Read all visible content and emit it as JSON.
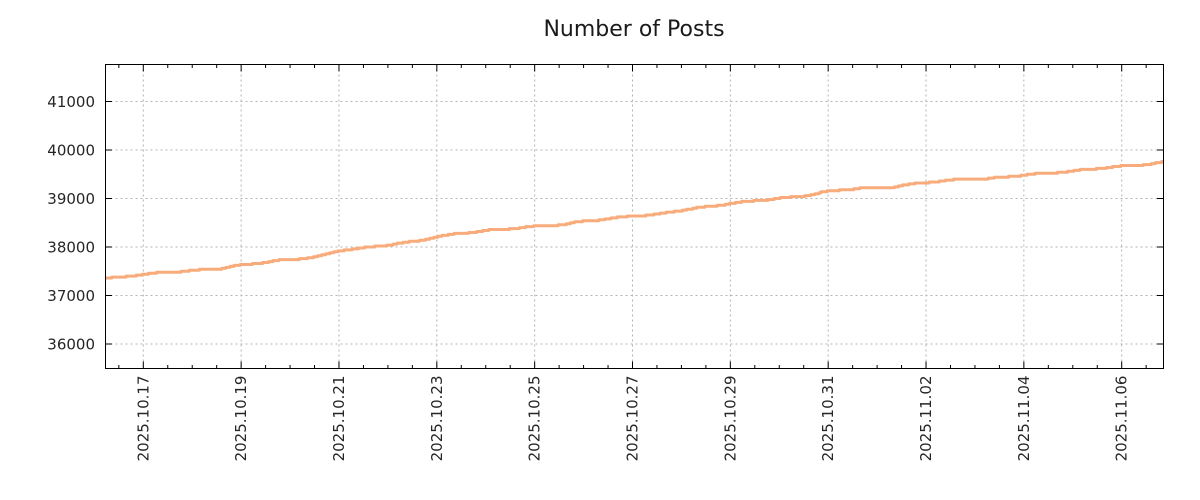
{
  "page": {
    "title": "Number of Posts"
  },
  "chart_data": {
    "type": "line",
    "title": "Number of Posts",
    "xlabel": "",
    "ylabel": "",
    "legend": "none",
    "grid": {
      "visible": true,
      "style": "dashed",
      "color": "#b3b3b3"
    },
    "x_axis": {
      "kind": "date",
      "major_tick_interval_days": 2,
      "minor_tick_interval_days": 0.5,
      "labels_rotated_degrees": 90,
      "ticks": [
        {
          "t": 0,
          "label": "2025.10.17"
        },
        {
          "t": 2,
          "label": "2025.10.19"
        },
        {
          "t": 4,
          "label": "2025.10.21"
        },
        {
          "t": 6,
          "label": "2025.10.23"
        },
        {
          "t": 8,
          "label": "2025.10.25"
        },
        {
          "t": 10,
          "label": "2025.10.27"
        },
        {
          "t": 12,
          "label": "2025.10.29"
        },
        {
          "t": 14,
          "label": "2025.10.31"
        },
        {
          "t": 16,
          "label": "2025.11.02"
        },
        {
          "t": 18,
          "label": "2025.11.04"
        },
        {
          "t": 20,
          "label": "2025.11.06"
        }
      ],
      "range_days": [
        -0.77,
        20.86
      ]
    },
    "y_axis": {
      "ticks": [
        36000,
        37000,
        38000,
        39000,
        40000,
        41000
      ],
      "range_approx": [
        35500,
        41760
      ]
    },
    "series": [
      {
        "name": "Number of Posts",
        "color": "#F8AC7C",
        "line_width": 3,
        "style": "cumulative-steps",
        "points": [
          [
            -0.77,
            37355
          ],
          [
            0,
            37440
          ],
          [
            0.5,
            37475
          ],
          [
            1,
            37510
          ],
          [
            1.5,
            37555
          ],
          [
            2,
            37630
          ],
          [
            2.5,
            37685
          ],
          [
            3,
            37740
          ],
          [
            3.5,
            37795
          ],
          [
            3.8,
            37870
          ],
          [
            4,
            37940
          ],
          [
            4.4,
            37965
          ],
          [
            5,
            38040
          ],
          [
            5.5,
            38110
          ],
          [
            6,
            38220
          ],
          [
            6.5,
            38285
          ],
          [
            7,
            38330
          ],
          [
            7.5,
            38380
          ],
          [
            8,
            38430
          ],
          [
            8.6,
            38470
          ],
          [
            9,
            38525
          ],
          [
            9.5,
            38575
          ],
          [
            10,
            38650
          ],
          [
            10.4,
            38665
          ],
          [
            11,
            38760
          ],
          [
            11.5,
            38820
          ],
          [
            12,
            38900
          ],
          [
            12.5,
            38960
          ],
          [
            13,
            39005
          ],
          [
            13.4,
            39030
          ],
          [
            14,
            39150
          ],
          [
            14.6,
            39215
          ],
          [
            15.3,
            39235
          ],
          [
            16,
            39330
          ],
          [
            16.6,
            39390
          ],
          [
            17.3,
            39410
          ],
          [
            18,
            39480
          ],
          [
            18.8,
            39555
          ],
          [
            19.5,
            39620
          ],
          [
            20,
            39660
          ],
          [
            20.5,
            39705
          ],
          [
            20.86,
            39755
          ]
        ],
        "start_value": 37355,
        "end_value": 39755
      }
    ]
  },
  "colors": {
    "background": "#ffffff",
    "frame": "#000000",
    "grid": "#b3b3b3",
    "tick_label": "#262626",
    "title": "#1a1a1a",
    "series": "#F8AC7C"
  }
}
